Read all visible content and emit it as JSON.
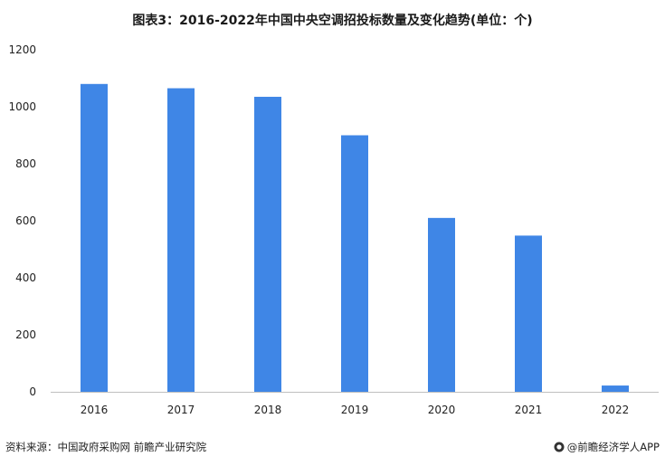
{
  "chart_data": {
    "type": "bar",
    "title": "图表3：2016-2022年中国中央空调招投标数量及变化趋势(单位：个)",
    "categories": [
      "2016",
      "2017",
      "2018",
      "2019",
      "2020",
      "2021",
      "2022"
    ],
    "values": [
      1080,
      1065,
      1035,
      900,
      610,
      548,
      22
    ],
    "ylim": [
      0,
      1200
    ],
    "yticks": [
      0,
      200,
      400,
      600,
      800,
      1000,
      1200
    ],
    "xlabel": "",
    "ylabel": "",
    "grid": false,
    "bar_color": "#3f86e6"
  },
  "footer": {
    "source": "资料来源：中国政府采购网 前瞻产业研究院",
    "brand": "@前瞻经济学人APP"
  }
}
